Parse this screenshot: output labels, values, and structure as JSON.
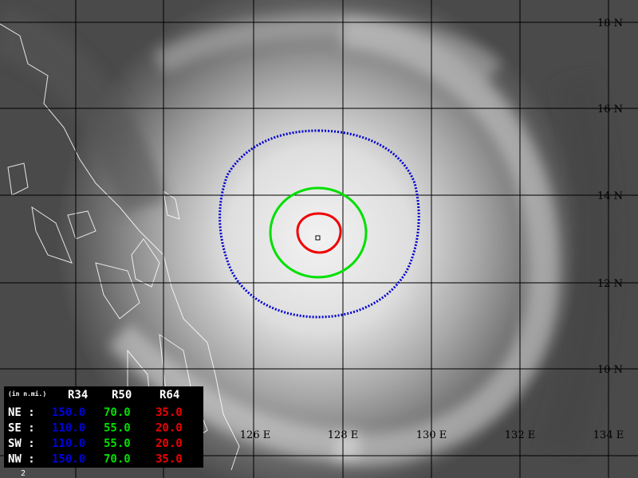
{
  "map": {
    "lat_labels": [
      "18 N",
      "16 N",
      "14 N",
      "12 N",
      "10 N"
    ],
    "lon_labels": [
      "126 E",
      "128 E",
      "130 E",
      "132 E",
      "134 E"
    ],
    "table": {
      "unit": "(in n.mi.)",
      "header": [
        "R34",
        "R50",
        "R64"
      ],
      "rows": [
        [
          "NE :",
          "150.0",
          "70.0",
          "35.0"
        ],
        [
          "SE :",
          "110.0",
          "55.0",
          "20.0"
        ],
        [
          "SW :",
          "110.0",
          "55.0",
          "20.0"
        ],
        [
          "NW :",
          "150.0",
          "70.0",
          "35.0"
        ]
      ]
    },
    "footer": "2"
  }
}
